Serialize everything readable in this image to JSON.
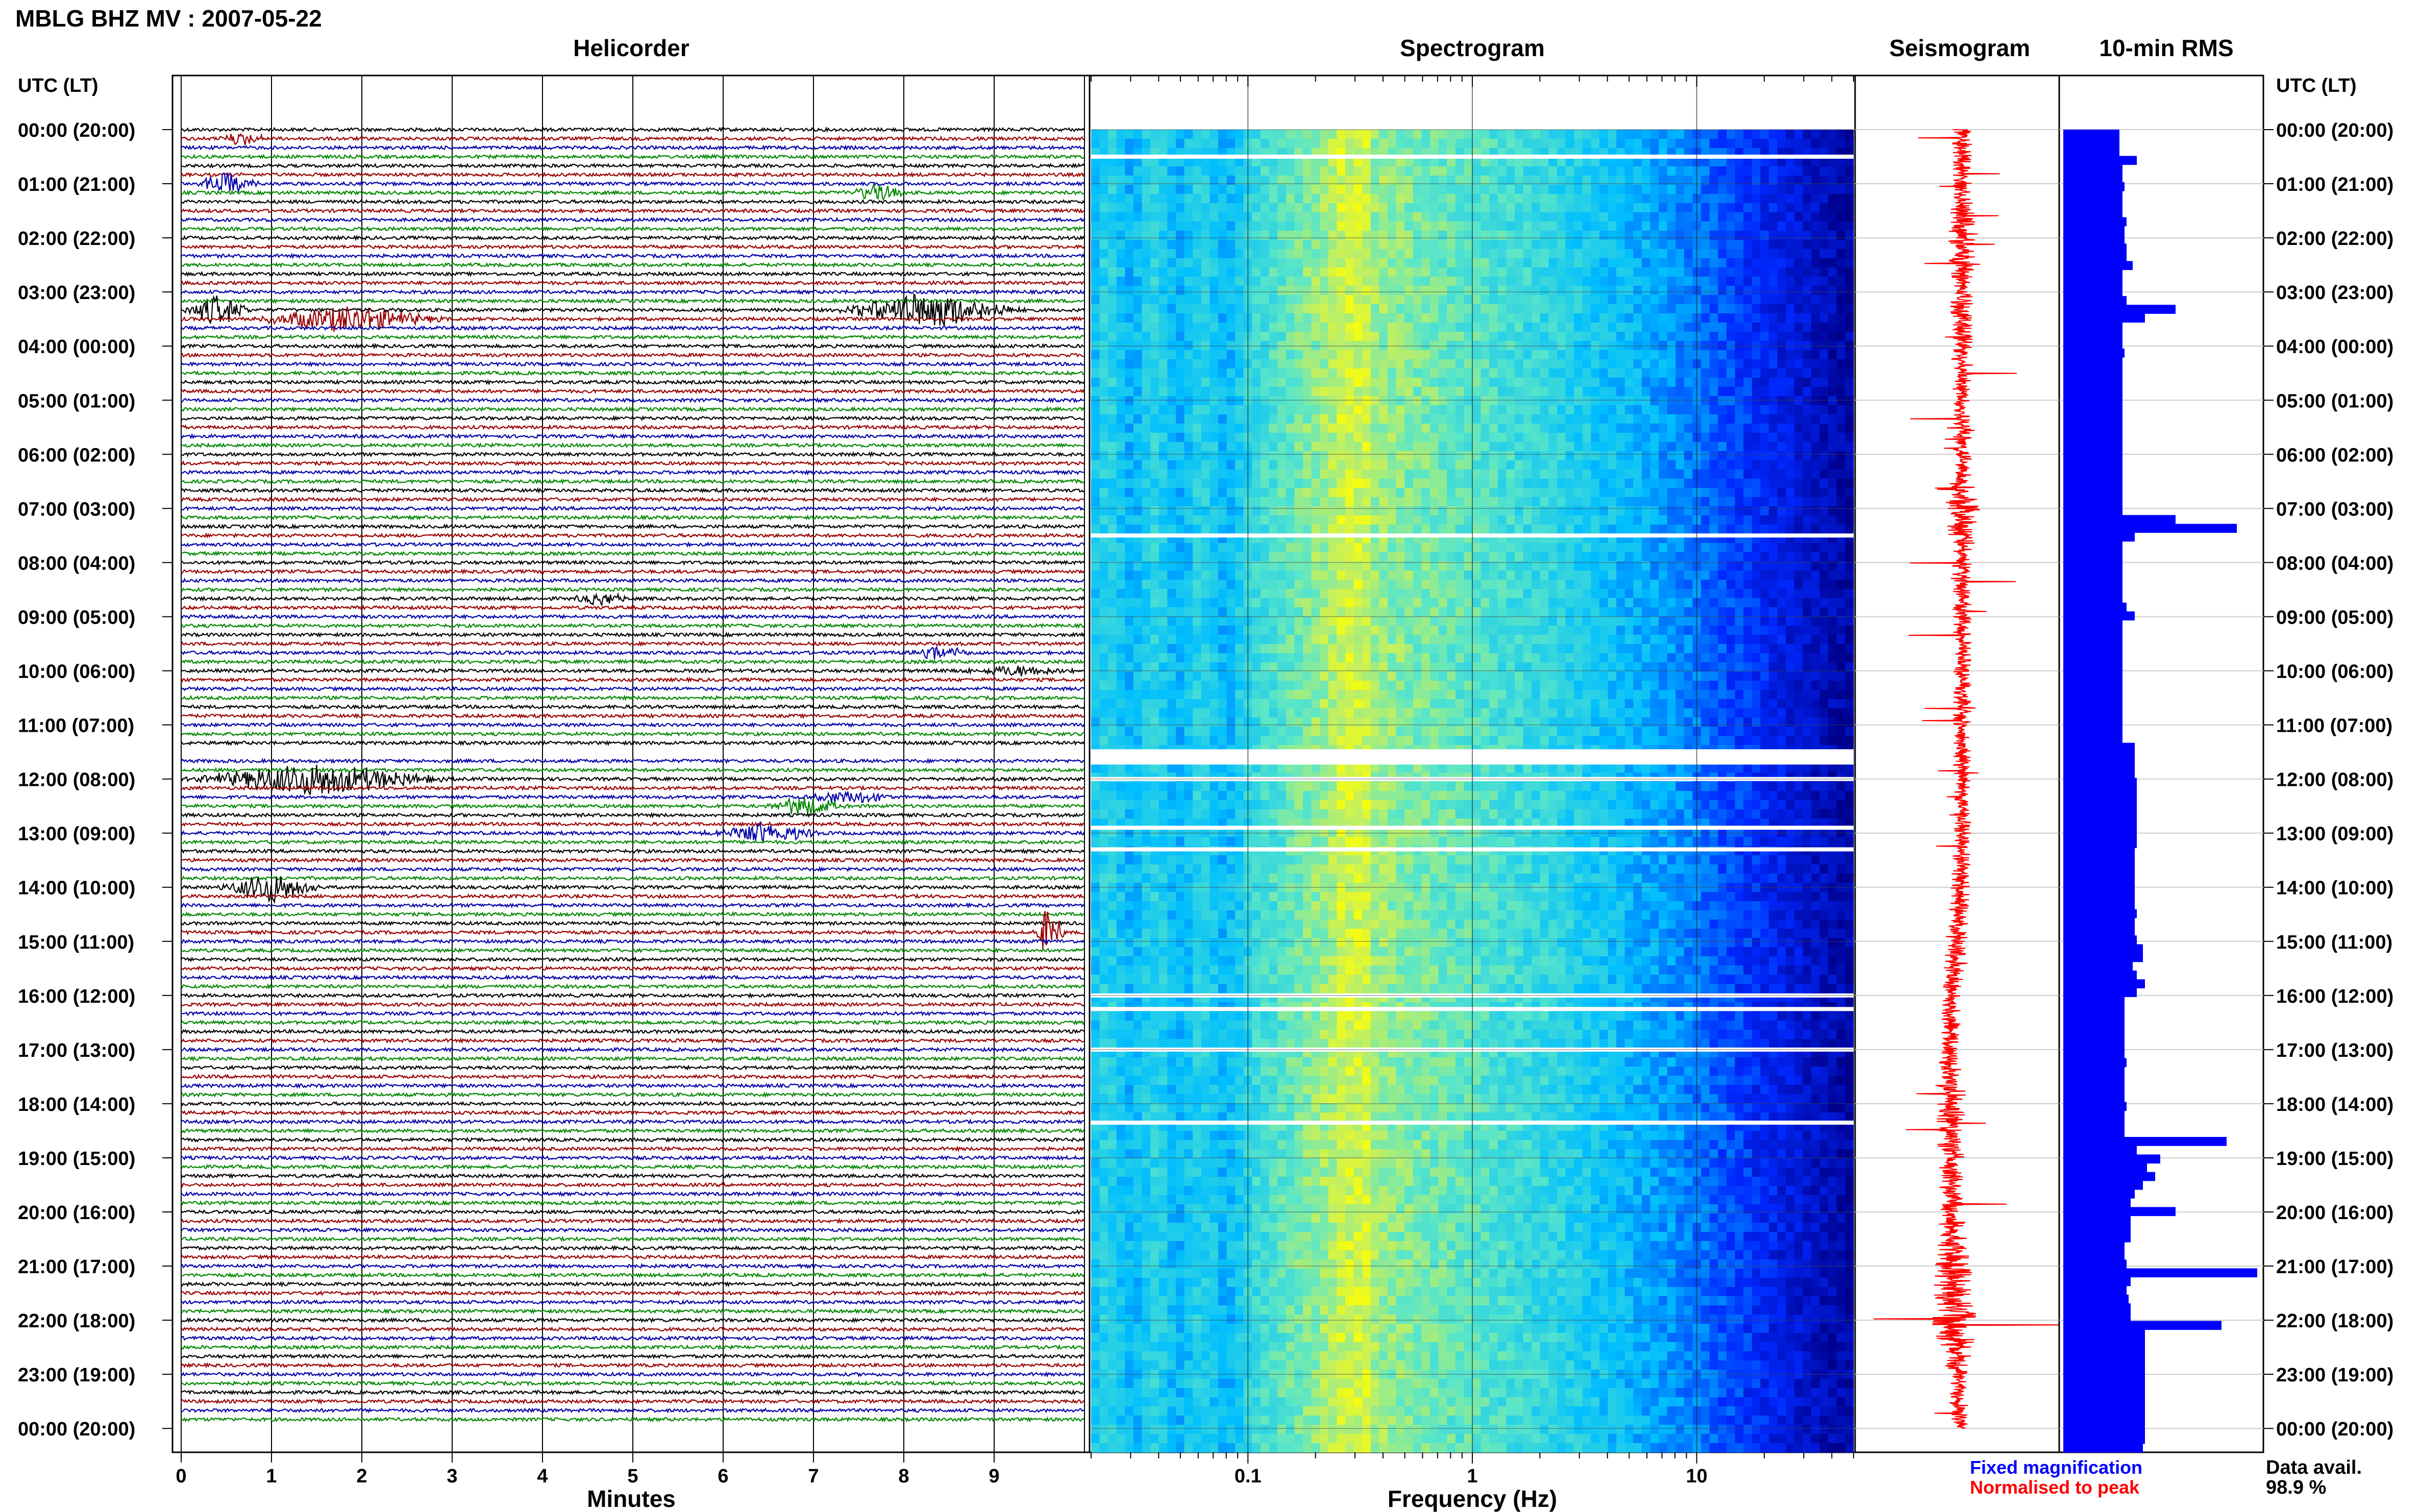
{
  "header": {
    "title": "MBLG BHZ MV : 2007-05-22",
    "timezone_label_left": "UTC (LT)",
    "timezone_label_right": "UTC (LT)"
  },
  "panels": {
    "helicorder_title": "Helicorder",
    "spectrogram_title": "Spectrogram",
    "seismogram_title": "Seismogram",
    "rms_title": "10-min RMS"
  },
  "legend": {
    "fixed": "Fixed magnification",
    "normalised": "Normalised to peak",
    "availability_label": "Data avail.",
    "availability_value": "98.9 %"
  },
  "colors": {
    "trace_cycle": [
      "#000000",
      "#990000",
      "#0000aa",
      "#008800"
    ],
    "rms_bar": "#0000ff",
    "seismogram_trace": "#ff0000",
    "gap": "#ffffff"
  },
  "chart_data": [
    {
      "type": "line",
      "name": "helicorder",
      "title": "Helicorder",
      "xlabel": "Minutes",
      "x_ticks": [
        "0",
        "1",
        "2",
        "3",
        "4",
        "5",
        "6",
        "7",
        "8",
        "9"
      ],
      "xlim": [
        0,
        10
      ],
      "y_tick_labels": [
        "00:00 (20:00)",
        "01:00 (21:00)",
        "02:00 (22:00)",
        "03:00 (23:00)",
        "04:00 (00:00)",
        "05:00 (01:00)",
        "06:00 (02:00)",
        "07:00 (03:00)",
        "08:00 (04:00)",
        "09:00 (05:00)",
        "10:00 (06:00)",
        "11:00 (07:00)",
        "12:00 (08:00)",
        "13:00 (09:00)",
        "14:00 (10:00)",
        "15:00 (11:00)",
        "16:00 (12:00)",
        "17:00 (13:00)",
        "18:00 (14:00)",
        "19:00 (15:00)",
        "20:00 (16:00)",
        "21:00 (17:00)",
        "22:00 (18:00)",
        "23:00 (19:00)",
        "00:00 (20:00)"
      ],
      "rows_per_hour": 6,
      "events": [
        {
          "row": 1,
          "start": 0.4,
          "end": 1.0,
          "amp": 0.6
        },
        {
          "row": 6,
          "start": 0.1,
          "end": 0.9,
          "amp": 1.0
        },
        {
          "row": 7,
          "start": 7.3,
          "end": 8.1,
          "amp": 0.8
        },
        {
          "row": 20,
          "start": 0.0,
          "end": 0.8,
          "amp": 1.4
        },
        {
          "row": 21,
          "start": 0.7,
          "end": 3.0,
          "amp": 1.2
        },
        {
          "row": 20,
          "start": 7.2,
          "end": 9.4,
          "amp": 1.6
        },
        {
          "row": 52,
          "start": 4.3,
          "end": 5.0,
          "amp": 0.6
        },
        {
          "row": 58,
          "start": 8.0,
          "end": 8.8,
          "amp": 0.6
        },
        {
          "row": 60,
          "start": 8.5,
          "end": 10.0,
          "amp": 0.5
        },
        {
          "row": 72,
          "start": 0.0,
          "end": 3.0,
          "amp": 1.5
        },
        {
          "row": 75,
          "start": 6.4,
          "end": 7.4,
          "amp": 0.9
        },
        {
          "row": 74,
          "start": 6.8,
          "end": 8.0,
          "amp": 0.6
        },
        {
          "row": 78,
          "start": 5.7,
          "end": 7.2,
          "amp": 0.9
        },
        {
          "row": 84,
          "start": 0.4,
          "end": 1.6,
          "amp": 1.4
        },
        {
          "row": 89,
          "start": 9.4,
          "end": 9.8,
          "amp": 2.4
        }
      ],
      "gaps": [
        {
          "row": 69,
          "start": 0.0,
          "end": 10.0
        }
      ]
    },
    {
      "type": "heatmap",
      "name": "spectrogram",
      "title": "Spectrogram",
      "xlabel": "Frequency (Hz)",
      "x_scale": "log",
      "xlim": [
        0.02,
        50
      ],
      "x_ticks": [
        0.1,
        1,
        10
      ],
      "x_tick_labels": [
        "0.1",
        "1",
        "10"
      ],
      "gap_hours": [
        0.5,
        7.5,
        11.5,
        12.0,
        12.9,
        13.3,
        16.0,
        16.25,
        17.0,
        18.35
      ]
    },
    {
      "type": "line",
      "name": "seismogram",
      "title": "Seismogram",
      "hourly_amplitude": [
        0.6,
        0.5,
        1.4,
        1.0,
        0.9,
        0.4,
        0.4,
        2.0,
        0.6,
        0.5,
        0.4,
        0.4,
        0.3,
        0.3,
        0.5,
        0.8,
        0.5,
        0.5,
        2.0,
        1.2,
        1.0,
        2.2,
        3.5,
        0.6,
        0.5
      ],
      "drift": [
        0.0,
        0.0,
        0.0,
        0.0,
        0.0,
        0.0,
        0.0,
        0.0,
        0.0,
        0.0,
        0.0,
        0.0,
        0.0,
        0.0,
        -0.1,
        -0.3,
        -0.5,
        -0.6,
        -0.6,
        -0.55,
        -0.5,
        -0.45,
        -0.35,
        -0.2,
        -0.05
      ]
    },
    {
      "type": "bar",
      "name": "rms",
      "title": "10-min RMS",
      "orientation": "horizontal",
      "xlim": [
        0,
        200
      ],
      "values": [
        55,
        55,
        55,
        72,
        58,
        58,
        60,
        58,
        58,
        58,
        62,
        60,
        60,
        62,
        62,
        68,
        58,
        58,
        58,
        62,
        110,
        80,
        58,
        58,
        58,
        60,
        58,
        58,
        58,
        58,
        58,
        58,
        58,
        58,
        58,
        58,
        58,
        58,
        58,
        58,
        58,
        58,
        58,
        58,
        110,
        170,
        70,
        58,
        58,
        58,
        58,
        58,
        58,
        58,
        62,
        70,
        58,
        58,
        58,
        58,
        58,
        58,
        58,
        58,
        58,
        58,
        58,
        58,
        58,
        58,
        70,
        70,
        70,
        70,
        72,
        72,
        72,
        72,
        72,
        72,
        72,
        72,
        70,
        70,
        70,
        70,
        70,
        70,
        70,
        72,
        70,
        70,
        72,
        78,
        78,
        68,
        72,
        80,
        72,
        60,
        60,
        60,
        60,
        60,
        60,
        60,
        62,
        60,
        60,
        60,
        60,
        62,
        60,
        60,
        60,
        160,
        72,
        95,
        82,
        90,
        78,
        70,
        66,
        110,
        66,
        66,
        66,
        60,
        60,
        62,
        190,
        66,
        62,
        64,
        66,
        66,
        155,
        80,
        80,
        80,
        80,
        80,
        80,
        80,
        80,
        80,
        80,
        80,
        80,
        80,
        78
      ]
    }
  ]
}
